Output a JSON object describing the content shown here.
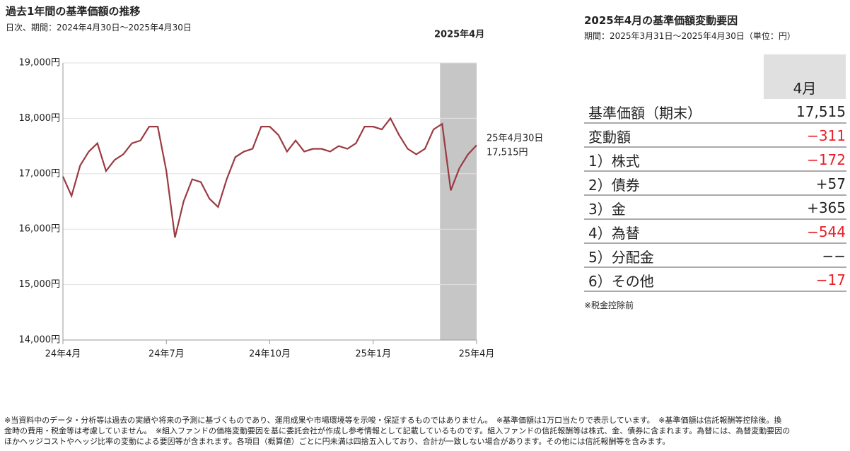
{
  "chart_data": {
    "type": "line",
    "title": "過去1年間の基準価額の推移",
    "subtitle": "日次、期間：2024年4月30日～2025年4月30日",
    "x": [
      0,
      0.25,
      0.5,
      0.75,
      1,
      1.25,
      1.5,
      1.75,
      2,
      2.25,
      2.5,
      2.75,
      3,
      3.25,
      3.5,
      3.75,
      4,
      4.25,
      4.5,
      4.75,
      5,
      5.25,
      5.5,
      5.75,
      6,
      6.25,
      6.5,
      6.75,
      7,
      7.25,
      7.5,
      7.75,
      8,
      8.25,
      8.5,
      8.75,
      9,
      9.25,
      9.5,
      9.75,
      10,
      10.25,
      10.5,
      10.75,
      11,
      11.25,
      11.5,
      11.75,
      12
    ],
    "series": [
      {
        "color": "#9b3a42",
        "values": [
          16950,
          16600,
          17150,
          17400,
          17550,
          17050,
          17250,
          17350,
          17550,
          17600,
          17850,
          17850,
          17050,
          15850,
          16500,
          16900,
          16850,
          16550,
          16400,
          16900,
          17300,
          17400,
          17450,
          17850,
          17850,
          17700,
          17400,
          17600,
          17400,
          17450,
          17450,
          17400,
          17500,
          17450,
          17550,
          17850,
          17850,
          17800,
          18000,
          17700,
          17450,
          17350,
          17450,
          17800,
          17900,
          16700,
          17100,
          17350,
          17515
        ]
      }
    ],
    "xlim": [
      0,
      12
    ],
    "xticks": [
      {
        "value": 0,
        "label": "24年4月"
      },
      {
        "value": 3,
        "label": "24年7月"
      },
      {
        "value": 6,
        "label": "24年10月"
      },
      {
        "value": 9,
        "label": "25年1月"
      },
      {
        "value": 12,
        "label": "25年4月"
      }
    ],
    "ylim": [
      14000,
      19000
    ],
    "yticks": [
      {
        "value": 14000,
        "label": "14,000円"
      },
      {
        "value": 15000,
        "label": "15,000円"
      },
      {
        "value": 16000,
        "label": "16,000円"
      },
      {
        "value": 17000,
        "label": "17,000円"
      },
      {
        "value": 18000,
        "label": "18,000円"
      },
      {
        "value": 19000,
        "label": "19,000円"
      }
    ],
    "grid": true,
    "highlight": {
      "label": "2025年4月",
      "from": 11,
      "to": 12,
      "color": "#c6c6c6"
    },
    "annotation": {
      "date": "25年4月30日",
      "value_label": "17,515円"
    }
  },
  "table": {
    "title": "2025年4月の基準価額変動要因",
    "subtitle": "期間：2025年3月31日～2025年4月30日（単位：円）",
    "header": "4月",
    "rows": [
      {
        "label": "基準価額（期末）",
        "value": "17,515",
        "color": "#222"
      },
      {
        "label": "変動額",
        "value": "−311",
        "color": "#e8202a"
      },
      {
        "label": "1）株式",
        "value": "−172",
        "color": "#e8202a"
      },
      {
        "label": "2）債券",
        "value": "+57",
        "color": "#222"
      },
      {
        "label": "3）金",
        "value": "+365",
        "color": "#222"
      },
      {
        "label": "4）為替",
        "value": "−544",
        "color": "#e8202a"
      },
      {
        "label": "5）分配金",
        "value": "−−",
        "color": "#222"
      },
      {
        "label": "6）その他",
        "value": "−17",
        "color": "#e8202a"
      }
    ],
    "note": "※税金控除前"
  },
  "footnotes": [
    "※当資料中のデータ・分析等は過去の実績や将来の予測に基づくものであり、運用成果や市場環境等を示唆・保証するものではありません。　※基準価額は1万口当たりで表示しています。　※基準価額は信託報酬等控除後。換",
    "金時の費用・税金等は考慮していません。　※組入ファンドの価格変動要因を基に委託会社が作成し参考情報として記載しているものです。組入ファンドの信託報酬等は株式、金、債券に含まれます。為替には、為替変動要因の",
    "ほかヘッジコストやヘッジ比率の変動による要因等が含まれます。各項目（概算値）ごとに円未満は四捨五入しており、合計が一致しない場合があります。その他には信託報酬等を含みます。"
  ]
}
